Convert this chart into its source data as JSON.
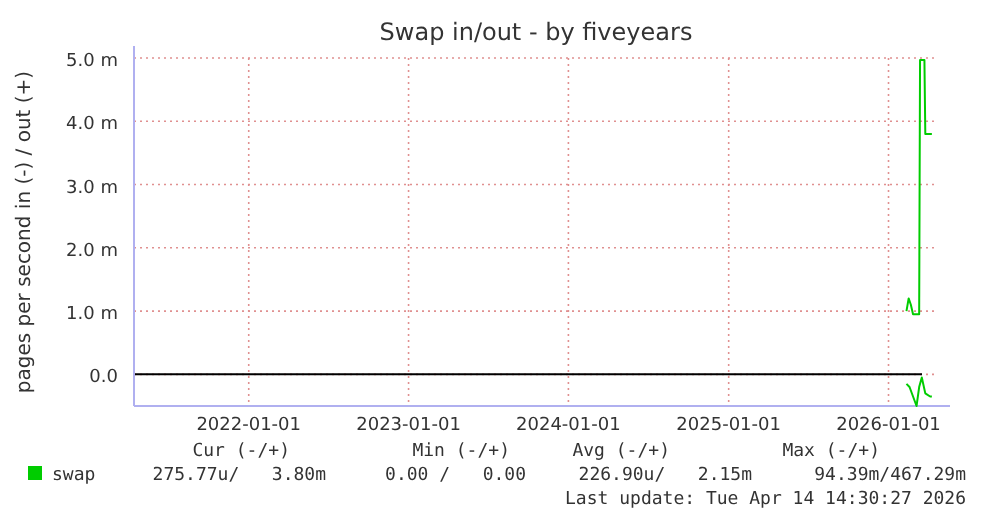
{
  "chart_data": {
    "type": "line",
    "title": "Swap in/out - by fiveyears",
    "ylabel": "pages per second in (-) / out (+)",
    "xlim": [
      "2021-04-14",
      "2026-04-24"
    ],
    "xticks": [
      "2022-01-01",
      "2023-01-01",
      "2024-01-01",
      "2025-01-01",
      "2026-01-01"
    ],
    "ylim": [
      -0.5,
      5.0
    ],
    "yticks": [
      {
        "value": 0,
        "label": "0.0"
      },
      {
        "value": 1,
        "label": "1.0 m"
      },
      {
        "value": 2,
        "label": "2.0 m"
      },
      {
        "value": 3,
        "label": "3.0 m"
      },
      {
        "value": 4,
        "label": "4.0 m"
      },
      {
        "value": 5,
        "label": "5.0 m"
      }
    ],
    "grid": true,
    "legend": "bottom",
    "line_style": "solid",
    "ref_lines": [
      {
        "axis": "y",
        "value": 0,
        "color": "#000000"
      }
    ],
    "series": [
      {
        "color": "#00cc00",
        "x": [
          "2026-02-11",
          "2026-02-18",
          "2026-02-26",
          "2026-03-06",
          "2026-03-12",
          "2026-03-18",
          "2026-03-26",
          "2026-04-06",
          "2026-04-10"
        ],
        "values": [
          -0.15,
          -0.2,
          -0.35,
          -0.5,
          -0.2,
          -0.05,
          -0.3,
          -0.35,
          -0.35
        ]
      },
      {
        "name": "swap",
        "color": "#00cc00",
        "x": [
          "2026-02-11",
          "2026-02-16",
          "2026-02-21",
          "2026-02-26",
          "2026-03-12",
          "2026-03-14",
          "2026-03-24",
          "2026-03-26",
          "2026-04-10"
        ],
        "values": [
          1.0,
          1.2,
          1.1,
          0.95,
          0.95,
          4.97,
          4.97,
          3.8,
          3.8
        ]
      }
    ],
    "annotations": [
      "Cur (-/+)",
      "Min (-/+)",
      "Avg (-/+)",
      "Max (-/+)",
      "275.77u/   3.80m",
      "0.00 /   0.00",
      "226.90u/   2.15m",
      "94.39m/467.29m",
      "Last update: Tue Apr 14 14:30:27 2026"
    ]
  }
}
